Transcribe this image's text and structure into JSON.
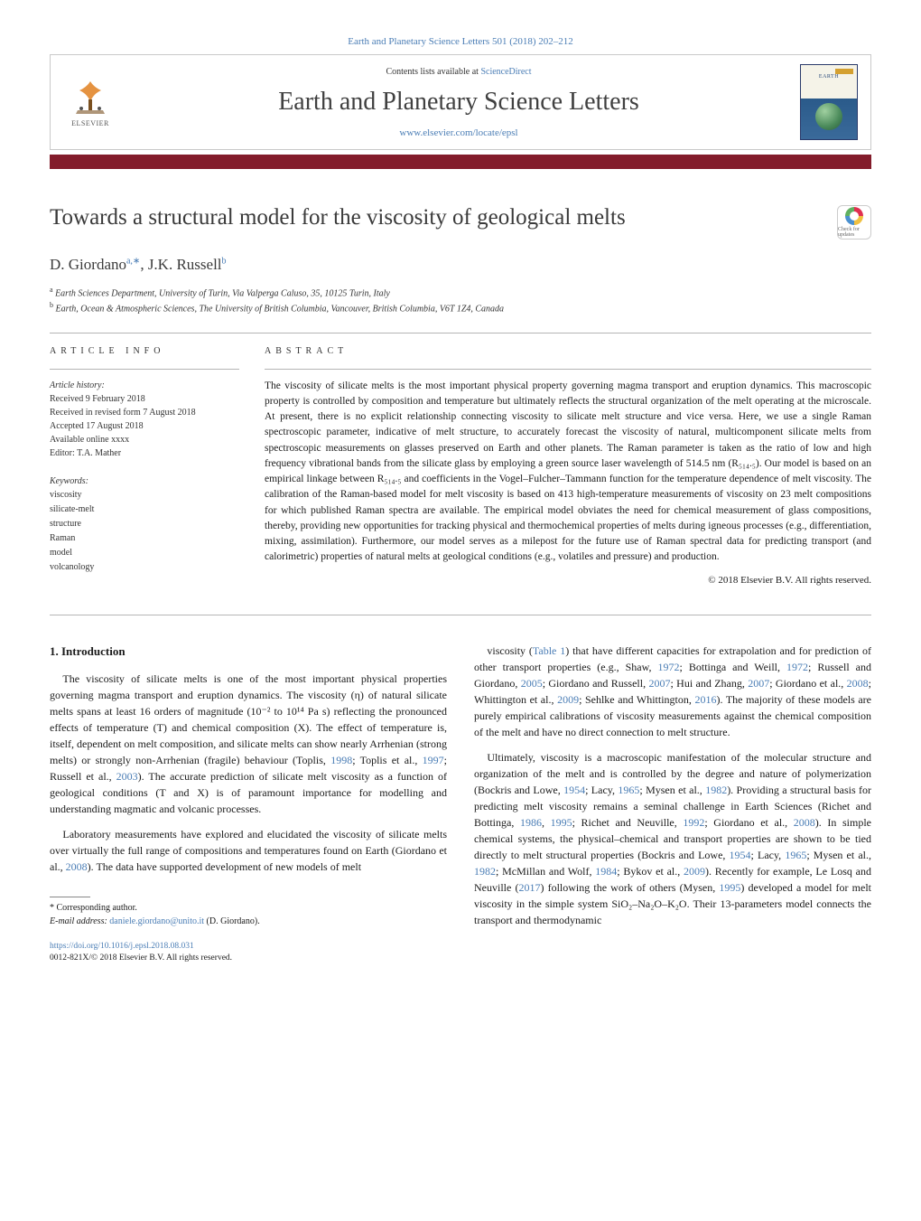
{
  "top_citation": "Earth and Planetary Science Letters 501 (2018) 202–212",
  "header": {
    "publisher_name": "ELSEVIER",
    "contents_prefix": "Contents lists available at ",
    "contents_link": "ScienceDirect",
    "journal_name": "Earth and Planetary Science Letters",
    "journal_homepage": "www.elsevier.com/locate/epsl",
    "cover_title_line": "EARTH"
  },
  "colors": {
    "accent_bar": "#831c2b",
    "link": "#4a7db5",
    "border": "#b5b5b5",
    "text": "#1a1a1a"
  },
  "article": {
    "title": "Towards a structural model for the viscosity of geological melts",
    "authors_html": "D. Giordano<sup_a>a,*</sup_a>, J.K. Russell<sup_b>b</sup_b>",
    "author1": "D. Giordano",
    "author1_sup": "a,∗",
    "author2": "J.K. Russell",
    "author2_sup": "b",
    "affiliations": [
      {
        "sup": "a",
        "text": "Earth Sciences Department, University of Turin, Via Valperga Caluso, 35, 10125 Turin, Italy"
      },
      {
        "sup": "b",
        "text": "Earth, Ocean & Atmospheric Sciences, The University of British Columbia, Vancouver, British Columbia, V6T 1Z4, Canada"
      }
    ],
    "crossmark_label": "Check for updates"
  },
  "info": {
    "label": "article info",
    "history_label": "Article history:",
    "history": [
      "Received 9 February 2018",
      "Received in revised form 7 August 2018",
      "Accepted 17 August 2018",
      "Available online xxxx",
      "Editor: T.A. Mather"
    ],
    "keywords_label": "Keywords:",
    "keywords": [
      "viscosity",
      "silicate-melt",
      "structure",
      "Raman",
      "model",
      "volcanology"
    ]
  },
  "abstract": {
    "label": "abstract",
    "text": "The viscosity of silicate melts is the most important physical property governing magma transport and eruption dynamics. This macroscopic property is controlled by composition and temperature but ultimately reflects the structural organization of the melt operating at the microscale. At present, there is no explicit relationship connecting viscosity to silicate melt structure and vice versa. Here, we use a single Raman spectroscopic parameter, indicative of melt structure, to accurately forecast the viscosity of natural, multicomponent silicate melts from spectroscopic measurements on glasses preserved on Earth and other planets. The Raman parameter is taken as the ratio of low and high frequency vibrational bands from the silicate glass by employing a green source laser wavelength of 514.5 nm (R₅₁₄.₅). Our model is based on an empirical linkage between R₅₁₄.₅ and coefficients in the Vogel–Fulcher–Tammann function for the temperature dependence of melt viscosity. The calibration of the Raman-based model for melt viscosity is based on 413 high-temperature measurements of viscosity on 23 melt compositions for which published Raman spectra are available. The empirical model obviates the need for chemical measurement of glass compositions, thereby, providing new opportunities for tracking physical and thermochemical properties of melts during igneous processes (e.g., differentiation, mixing, assimilation). Furthermore, our model serves as a milepost for the future use of Raman spectral data for predicting transport (and calorimetric) properties of natural melts at geological conditions (e.g., volatiles and pressure) and production.",
    "copyright": "© 2018 Elsevier B.V. All rights reserved."
  },
  "body": {
    "heading": "1. Introduction",
    "left": [
      "The viscosity of silicate melts is one of the most important physical properties governing magma transport and eruption dynamics. The viscosity (η) of natural silicate melts spans at least 16 orders of magnitude (10⁻² to 10¹⁴ Pa s) reflecting the pronounced effects of temperature (T) and chemical composition (X). The effect of temperature is, itself, dependent on melt composition, and silicate melts can show nearly Arrhenian (strong melts) or strongly non-Arrhenian (fragile) behaviour (Toplis, 1998; Toplis et al., 1997; Russell et al., 2003). The accurate prediction of silicate melt viscosity as a function of geological conditions (T and X) is of paramount importance for modelling and understanding magmatic and volcanic processes.",
      "Laboratory measurements have explored and elucidated the viscosity of silicate melts over virtually the full range of compositions and temperatures found on Earth (Giordano et al., 2008). The data have supported development of new models of melt"
    ],
    "right": [
      "viscosity (Table 1) that have different capacities for extrapolation and for prediction of other transport properties (e.g., Shaw, 1972; Bottinga and Weill, 1972; Russell and Giordano, 2005; Giordano and Russell, 2007; Hui and Zhang, 2007; Giordano et al., 2008; Whittington et al., 2009; Sehlke and Whittington, 2016). The majority of these models are purely empirical calibrations of viscosity measurements against the chemical composition of the melt and have no direct connection to melt structure.",
      "Ultimately, viscosity is a macroscopic manifestation of the molecular structure and organization of the melt and is controlled by the degree and nature of polymerization (Bockris and Lowe, 1954; Lacy, 1965; Mysen et al., 1982). Providing a structural basis for predicting melt viscosity remains a seminal challenge in Earth Sciences (Richet and Bottinga, 1986, 1995; Richet and Neuville, 1992; Giordano et al., 2008). In simple chemical systems, the physical–chemical and transport properties are shown to be tied directly to melt structural properties (Bockris and Lowe, 1954; Lacy, 1965; Mysen et al., 1982; McMillan and Wolf, 1984; Bykov et al., 2009). Recently for example, Le Losq and Neuville (2017) following the work of others (Mysen, 1995) developed a model for melt viscosity in the simple system SiO₂–Na₂O–K₂O. Their 13-parameters model connects the transport and thermodynamic"
    ]
  },
  "footnotes": {
    "corr_label": "* Corresponding author.",
    "email_label": "E-mail address:",
    "email": "daniele.giordano@unito.it",
    "email_who": "(D. Giordano).",
    "doi": "https://doi.org/10.1016/j.epsl.2018.08.031",
    "issn_line": "0012-821X/© 2018 Elsevier B.V. All rights reserved."
  }
}
